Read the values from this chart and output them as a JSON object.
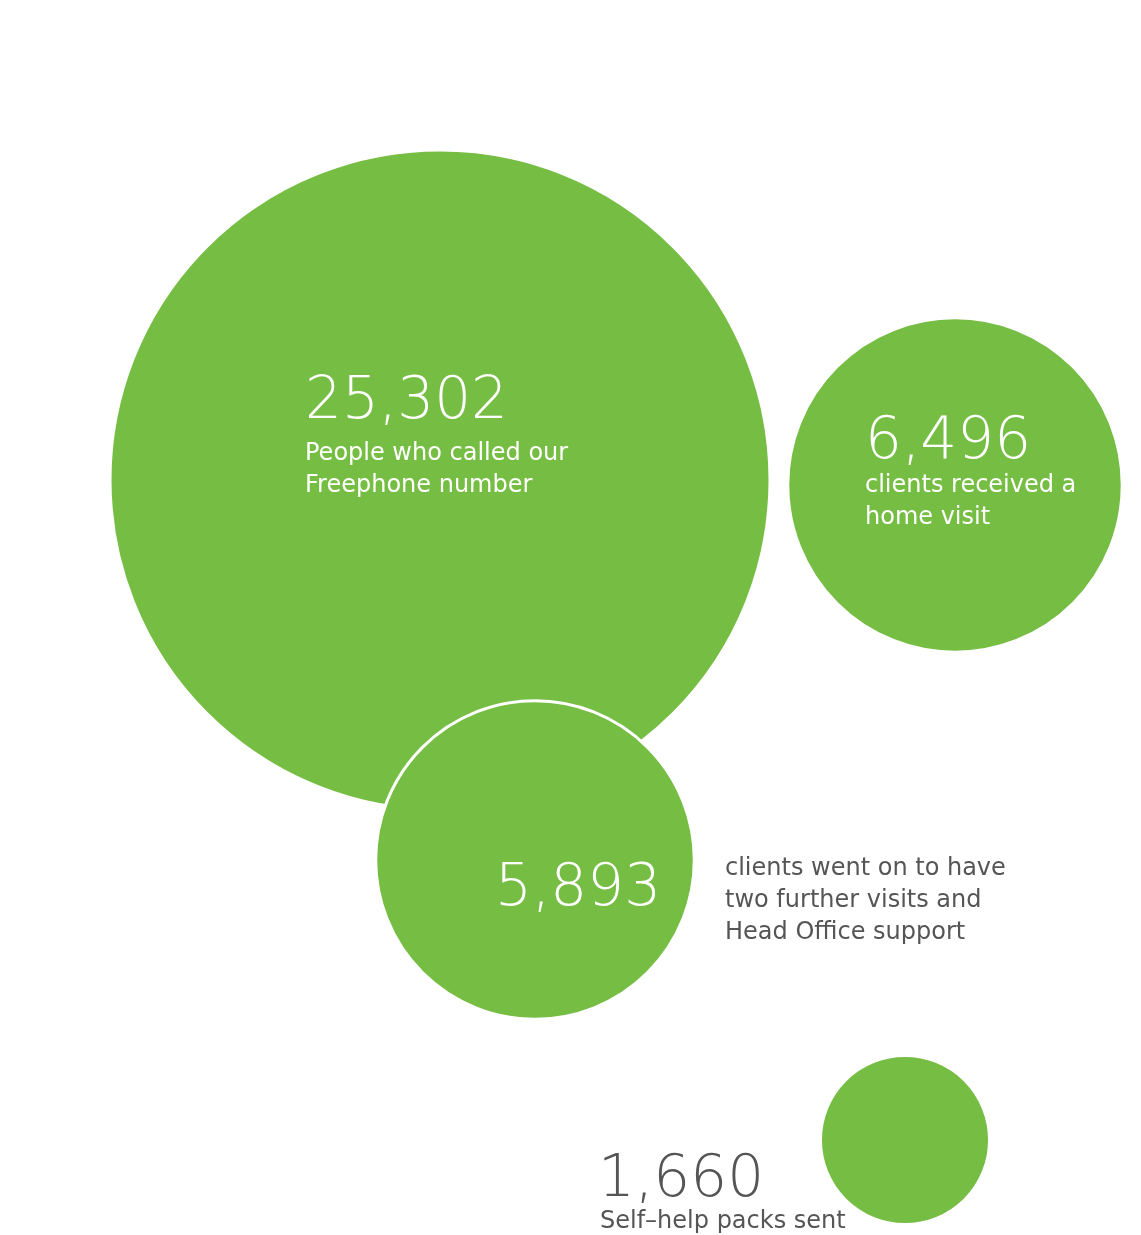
{
  "chart_data": {
    "type": "other",
    "categories": [
      "People who called our Freephone number",
      "clients received a home visit",
      "clients went on to have two further visits and Head Office support",
      "Self–help packs sent"
    ],
    "values": [
      25302,
      6496,
      5893,
      1660
    ],
    "value_labels": [
      "25,302",
      "6,496",
      "5,893",
      "1,660"
    ],
    "colors": [
      "#76bd43",
      "#76bd43",
      "#76bd43",
      "#76bd43"
    ]
  }
}
